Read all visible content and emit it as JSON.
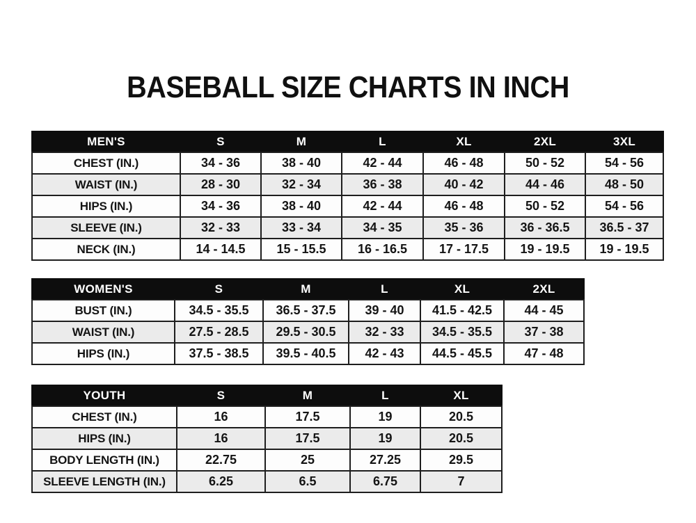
{
  "page": {
    "title": "BASEBALL SIZE CHARTS IN INCH"
  },
  "theme": {
    "header_bg": "#0d0d0d",
    "header_text": "#ffffff",
    "row_white": "#fdfdfd",
    "row_gray": "#ebebeb",
    "border": "#1e1e1e",
    "text": "#141414",
    "page_bg": "#ffffff"
  },
  "tables": [
    {
      "name": "mens",
      "header": [
        "MEN'S",
        "S",
        "M",
        "L",
        "XL",
        "2XL",
        "3XL"
      ],
      "rows": [
        [
          "CHEST (IN.)",
          "34 - 36",
          "38 - 40",
          "42 - 44",
          "46 - 48",
          "50 - 52",
          "54 - 56"
        ],
        [
          "WAIST (IN.)",
          "28 - 30",
          "32 - 34",
          "36 - 38",
          "40 - 42",
          "44 - 46",
          "48 - 50"
        ],
        [
          "HIPS (IN.)",
          "34 - 36",
          "38 - 40",
          "42 - 44",
          "46 - 48",
          "50 - 52",
          "54 - 56"
        ],
        [
          "SLEEVE (IN.)",
          "32 - 33",
          "33 - 34",
          "34 - 35",
          "35 - 36",
          "36 - 36.5",
          "36.5 - 37"
        ],
        [
          "NECK (IN.)",
          "14 - 14.5",
          "15 - 15.5",
          "16 - 16.5",
          "17 - 17.5",
          "19 - 19.5",
          "19 - 19.5"
        ]
      ]
    },
    {
      "name": "womens",
      "header": [
        "WOMEN'S",
        "S",
        "M",
        "L",
        "XL",
        "2XL"
      ],
      "rows": [
        [
          "BUST (IN.)",
          "34.5 - 35.5",
          "36.5 - 37.5",
          "39 - 40",
          "41.5 - 42.5",
          "44 - 45"
        ],
        [
          "WAIST (IN.)",
          "27.5 - 28.5",
          "29.5 - 30.5",
          "32 - 33",
          "34.5 - 35.5",
          "37 - 38"
        ],
        [
          "HIPS (IN.)",
          "37.5 - 38.5",
          "39.5 - 40.5",
          "42 - 43",
          "44.5 - 45.5",
          "47 - 48"
        ]
      ]
    },
    {
      "name": "youth",
      "header": [
        "YOUTH",
        "S",
        "M",
        "L",
        "XL"
      ],
      "rows": [
        [
          "CHEST (IN.)",
          "16",
          "17.5",
          "19",
          "20.5"
        ],
        [
          "HIPS (IN.)",
          "16",
          "17.5",
          "19",
          "20.5"
        ],
        [
          "BODY LENGTH (IN.)",
          "22.75",
          "25",
          "27.25",
          "29.5"
        ],
        [
          "SLEEVE LENGTH (IN.)",
          "6.25",
          "6.5",
          "6.75",
          "7"
        ]
      ]
    }
  ]
}
